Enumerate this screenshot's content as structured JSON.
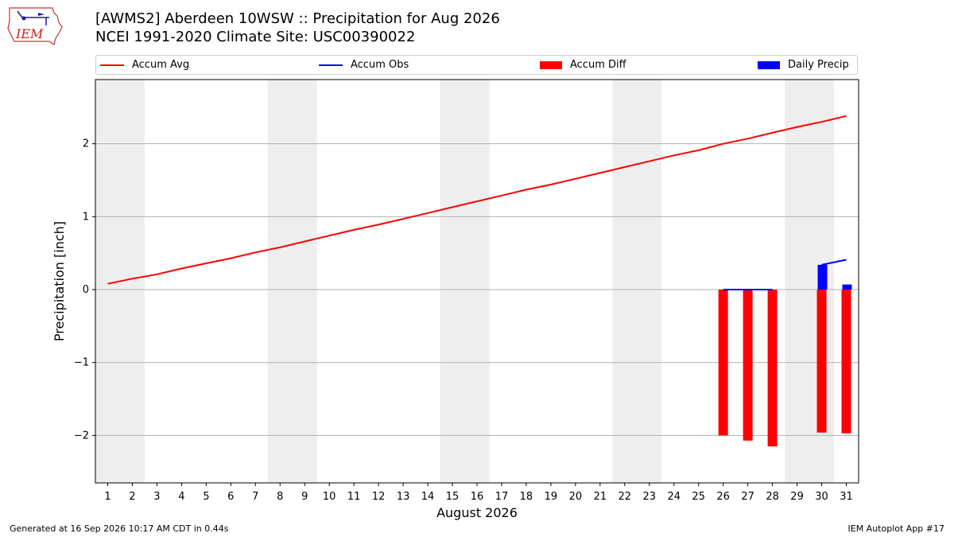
{
  "header": {
    "title_line1": "[AWMS2] Aberdeen 10WSW :: Precipitation for Aug 2026",
    "title_line2": "NCEI 1991-2020 Climate Site: USC00390022",
    "logo_text": "IEM"
  },
  "legend": [
    {
      "label": "Accum Avg",
      "color": "#ff0000",
      "kind": "line"
    },
    {
      "label": "Accum Obs",
      "color": "#0000ff",
      "kind": "line"
    },
    {
      "label": "Accum Diff",
      "color": "#ff0000",
      "kind": "patch"
    },
    {
      "label": "Daily Precip",
      "color": "#0000ff",
      "kind": "patch"
    }
  ],
  "footer": {
    "left": "Generated at 16 Sep 2026 10:17 AM CDT in 0.44s",
    "right": "IEM Autoplot App #17"
  },
  "chart_data": {
    "type": "line",
    "xlabel": "August 2026",
    "ylabel": "Precipitation [inch]",
    "xlim": [
      0.5,
      31.5
    ],
    "ylim": [
      -2.65,
      2.88
    ],
    "yticks": [
      -2,
      -1,
      0,
      1,
      2
    ],
    "ytick_labels": [
      "−2",
      "−1",
      "0",
      "1",
      "2"
    ],
    "grid": "horizontal",
    "days": [
      1,
      2,
      3,
      4,
      5,
      6,
      7,
      8,
      9,
      10,
      11,
      12,
      13,
      14,
      15,
      16,
      17,
      18,
      19,
      20,
      21,
      22,
      23,
      24,
      25,
      26,
      27,
      28,
      29,
      30,
      31
    ],
    "weekend_shading": [
      [
        1,
        2
      ],
      [
        8,
        9
      ],
      [
        15,
        16
      ],
      [
        22,
        23
      ],
      [
        29,
        30
      ]
    ],
    "series": [
      {
        "name": "Accum Avg",
        "type": "line",
        "color": "#ff0000",
        "x": [
          1,
          2,
          3,
          4,
          5,
          6,
          7,
          8,
          9,
          10,
          11,
          12,
          13,
          14,
          15,
          16,
          17,
          18,
          19,
          20,
          21,
          22,
          23,
          24,
          25,
          26,
          27,
          28,
          29,
          30,
          31
        ],
        "values": [
          0.08,
          0.15,
          0.21,
          0.29,
          0.36,
          0.43,
          0.51,
          0.58,
          0.66,
          0.74,
          0.82,
          0.89,
          0.97,
          1.05,
          1.13,
          1.21,
          1.29,
          1.37,
          1.44,
          1.52,
          1.6,
          1.68,
          1.76,
          1.84,
          1.91,
          2.0,
          2.07,
          2.15,
          2.23,
          2.3,
          2.38
        ]
      },
      {
        "name": "Accum Obs",
        "type": "line",
        "color": "#0000ff",
        "x": [
          26,
          27,
          28,
          29,
          30,
          31
        ],
        "values": [
          0.0,
          0.0,
          0.0,
          null,
          0.34,
          0.41
        ]
      },
      {
        "name": "Accum Diff",
        "type": "bar",
        "color": "#ff0000",
        "x": [
          26,
          27,
          28,
          30,
          31
        ],
        "values": [
          -2.0,
          -2.07,
          -2.15,
          -1.96,
          -1.97
        ]
      },
      {
        "name": "Daily Precip",
        "type": "bar",
        "color": "#0000ff",
        "x": [
          26,
          27,
          28,
          30,
          31
        ],
        "values": [
          0.0,
          0.0,
          0.0,
          0.34,
          0.07
        ]
      }
    ]
  }
}
